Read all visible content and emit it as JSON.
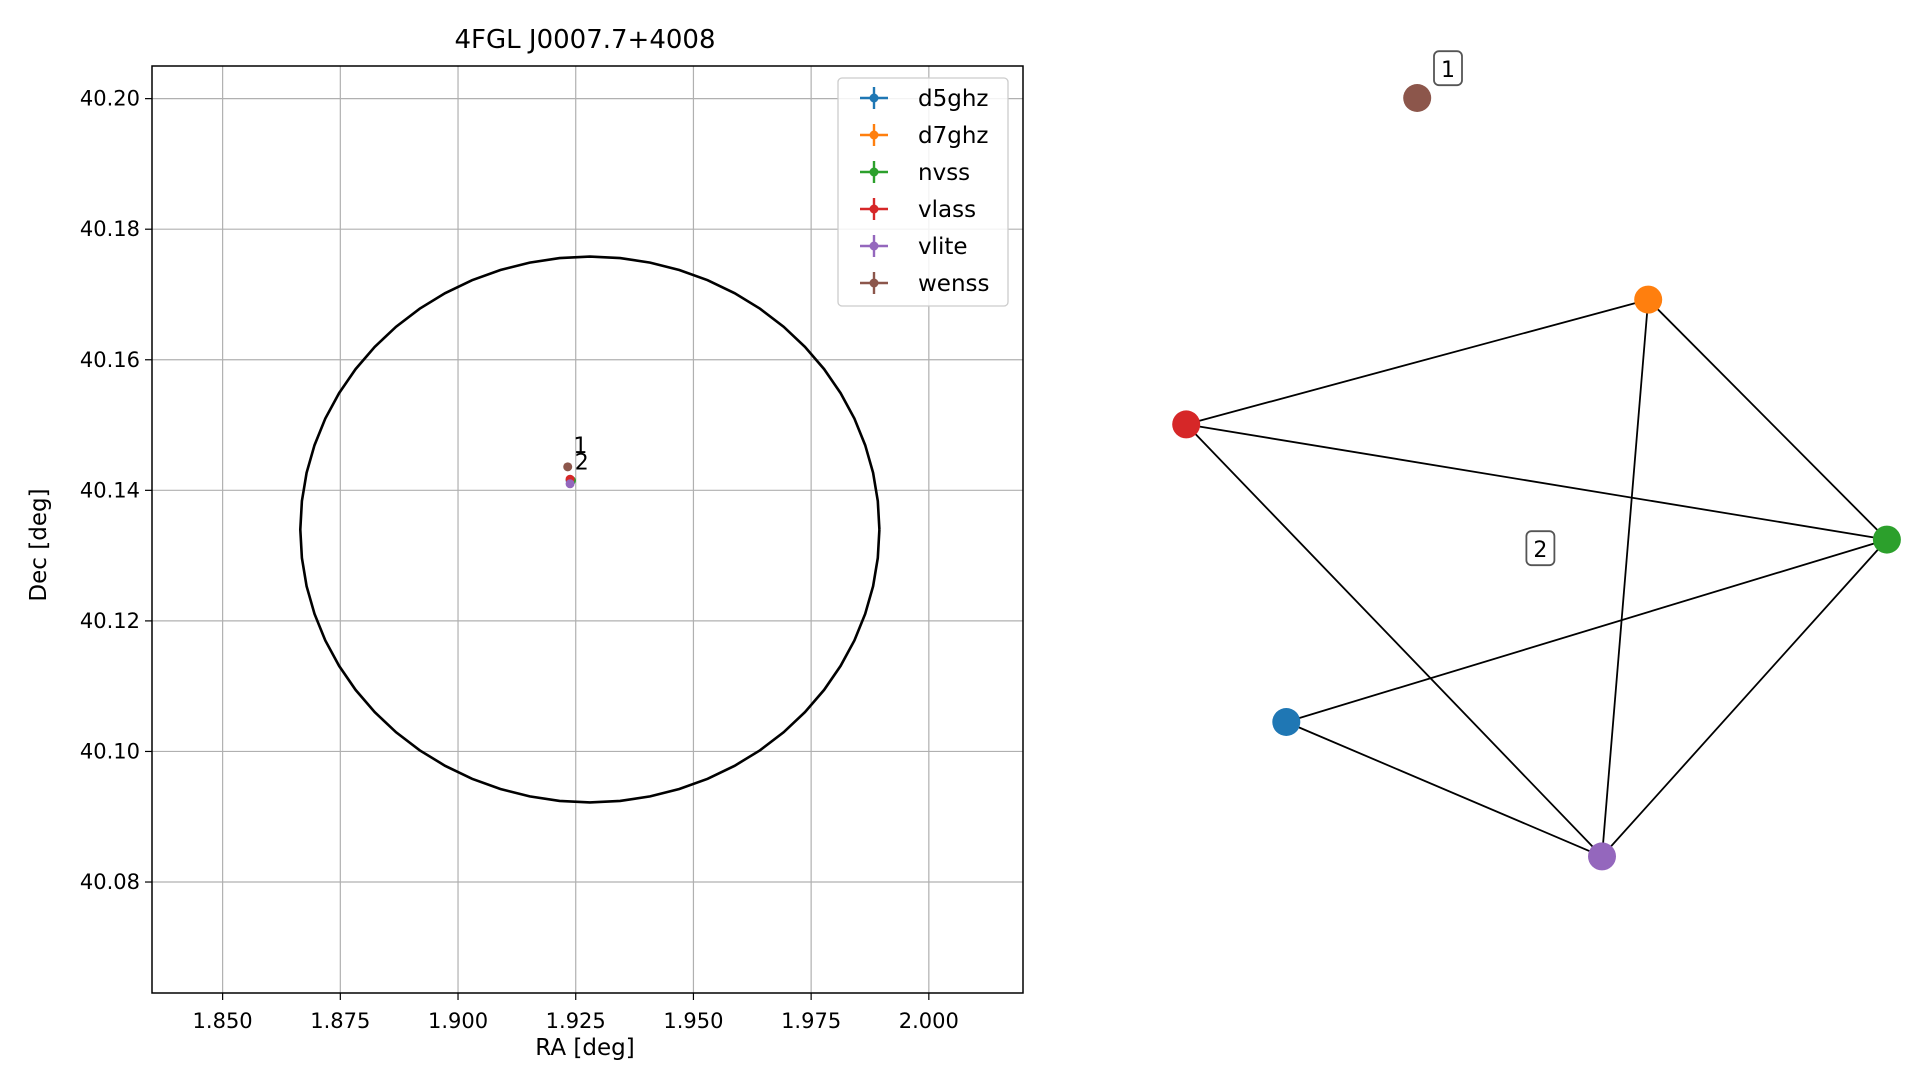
{
  "chart_data": [
    {
      "type": "scatter",
      "title": "4FGL J0007.7+4008",
      "xlabel": "RA [deg]",
      "ylabel": "Dec [deg]",
      "xlim": [
        1.835,
        2.02
      ],
      "ylim": [
        40.063,
        40.205
      ],
      "xticks": [
        1.85,
        1.875,
        1.9,
        1.925,
        1.95,
        1.975,
        2.0
      ],
      "xtick_labels": [
        "1.850",
        "1.875",
        "1.900",
        "1.925",
        "1.950",
        "1.975",
        "2.000"
      ],
      "yticks": [
        40.08,
        40.1,
        40.12,
        40.14,
        40.16,
        40.18,
        40.2
      ],
      "ytick_labels": [
        "40.08",
        "40.10",
        "40.12",
        "40.14",
        "40.16",
        "40.18",
        "40.20"
      ],
      "grid": true,
      "legend_position": "top-right",
      "ellipse": {
        "center": [
          1.928,
          40.134
        ],
        "radius_x": 0.0615,
        "radius_y": 0.0418
      },
      "series": [
        {
          "name": "d5ghz",
          "color": "#1f77b4",
          "points": [
            [
              1.9238,
              40.1415
            ]
          ]
        },
        {
          "name": "d7ghz",
          "color": "#ff7f0e",
          "points": [
            [
              1.9239,
              40.1416
            ]
          ]
        },
        {
          "name": "nvss",
          "color": "#2ca02c",
          "points": [
            [
              1.9241,
              40.1415
            ]
          ]
        },
        {
          "name": "vlass",
          "color": "#d62728",
          "points": [
            [
              1.9238,
              40.1417
            ]
          ]
        },
        {
          "name": "vlite",
          "color": "#9467bd",
          "points": [
            [
              1.9238,
              40.141
            ]
          ]
        },
        {
          "name": "wenss",
          "color": "#8c564b",
          "points": [
            [
              1.9233,
              40.1436
            ]
          ]
        }
      ],
      "annotations": [
        {
          "text": "1",
          "x": 1.9245,
          "y": 40.1457
        },
        {
          "text": "2",
          "x": 1.9248,
          "y": 40.1432
        }
      ]
    },
    {
      "type": "network",
      "nodes": [
        {
          "id": "wenss",
          "color": "#8c564b",
          "x": 0.36,
          "y": 0.05
        },
        {
          "id": "d7ghz",
          "color": "#ff7f0e",
          "x": 0.66,
          "y": 0.26
        },
        {
          "id": "vlass",
          "color": "#d62728",
          "x": 0.06,
          "y": 0.39
        },
        {
          "id": "nvss",
          "color": "#2ca02c",
          "x": 0.97,
          "y": 0.51
        },
        {
          "id": "d5ghz",
          "color": "#1f77b4",
          "x": 0.19,
          "y": 0.7
        },
        {
          "id": "vlite",
          "color": "#9467bd",
          "x": 0.6,
          "y": 0.84
        }
      ],
      "edges": [
        [
          "vlass",
          "d7ghz"
        ],
        [
          "vlass",
          "nvss"
        ],
        [
          "vlass",
          "vlite"
        ],
        [
          "d7ghz",
          "nvss"
        ],
        [
          "d7ghz",
          "vlite"
        ],
        [
          "nvss",
          "d5ghz"
        ],
        [
          "nvss",
          "vlite"
        ],
        [
          "d5ghz",
          "vlite"
        ]
      ],
      "group_labels": [
        {
          "text": "1",
          "x": 0.4,
          "y": 0.02
        },
        {
          "text": "2",
          "x": 0.52,
          "y": 0.52
        }
      ]
    }
  ]
}
